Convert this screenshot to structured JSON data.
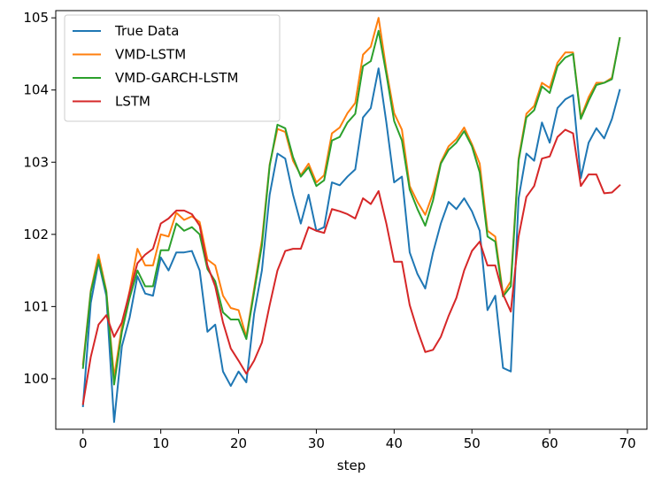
{
  "chart_data": {
    "type": "line",
    "title": "",
    "xlabel": "step",
    "ylabel": "",
    "xlim": [
      -3.5,
      72.5
    ],
    "ylim": [
      99.3,
      105.1
    ],
    "xticks": [
      0,
      10,
      20,
      30,
      40,
      50,
      60,
      70
    ],
    "yticks": [
      100,
      101,
      102,
      103,
      104,
      105
    ],
    "grid": false,
    "legend_position": "top-left",
    "series": [
      {
        "name": "True Data",
        "color": "#1f77b4",
        "values": [
          99.62,
          101.05,
          101.62,
          101.15,
          99.4,
          100.45,
          100.85,
          101.42,
          101.18,
          101.15,
          101.68,
          101.5,
          101.75,
          101.75,
          101.77,
          101.5,
          100.65,
          100.75,
          100.1,
          99.9,
          100.1,
          99.95,
          100.9,
          101.5,
          102.55,
          103.12,
          103.05,
          102.55,
          102.15,
          102.55,
          102.05,
          102.1,
          102.72,
          102.68,
          102.8,
          102.9,
          103.62,
          103.75,
          104.3,
          103.55,
          102.72,
          102.8,
          101.75,
          101.45,
          101.25,
          101.75,
          102.15,
          102.45,
          102.35,
          102.5,
          102.32,
          102.05,
          100.95,
          101.15,
          100.15,
          100.1,
          102.5,
          103.12,
          103.02,
          103.55,
          103.27,
          103.75,
          103.87,
          103.93,
          102.78,
          103.27,
          103.47,
          103.33,
          103.6,
          104.0
        ]
      },
      {
        "name": "VMD-LSTM",
        "color": "#ff7f0e",
        "values": [
          100.2,
          101.22,
          101.72,
          101.22,
          100.02,
          100.72,
          101.22,
          101.8,
          101.57,
          101.57,
          102.0,
          101.97,
          102.3,
          102.2,
          102.25,
          102.17,
          101.65,
          101.57,
          101.15,
          100.98,
          100.95,
          100.58,
          101.25,
          101.92,
          102.97,
          103.46,
          103.42,
          103.02,
          102.82,
          102.98,
          102.72,
          102.82,
          103.4,
          103.48,
          103.68,
          103.82,
          104.49,
          104.6,
          105.0,
          104.28,
          103.68,
          103.45,
          102.67,
          102.45,
          102.27,
          102.57,
          103.0,
          103.22,
          103.32,
          103.48,
          103.25,
          102.98,
          102.05,
          101.97,
          101.17,
          101.35,
          103.05,
          103.67,
          103.78,
          104.1,
          104.03,
          104.38,
          104.52,
          104.52,
          103.62,
          103.9,
          104.1,
          104.1,
          104.17,
          104.72
        ]
      },
      {
        "name": "VMD-GARCH-LSTM",
        "color": "#2ca02c",
        "values": [
          100.15,
          101.2,
          101.65,
          101.2,
          99.92,
          100.65,
          101.12,
          101.5,
          101.28,
          101.28,
          101.78,
          101.78,
          102.15,
          102.05,
          102.1,
          102.0,
          101.52,
          101.35,
          100.92,
          100.82,
          100.82,
          100.55,
          101.2,
          101.85,
          102.95,
          103.52,
          103.47,
          103.07,
          102.8,
          102.93,
          102.67,
          102.75,
          103.3,
          103.35,
          103.55,
          103.67,
          104.33,
          104.4,
          104.82,
          104.22,
          103.57,
          103.3,
          102.62,
          102.35,
          102.12,
          102.47,
          102.98,
          103.17,
          103.27,
          103.43,
          103.22,
          102.86,
          101.97,
          101.9,
          101.14,
          101.28,
          103.02,
          103.62,
          103.72,
          104.05,
          103.96,
          104.33,
          104.45,
          104.5,
          103.6,
          103.85,
          104.07,
          104.1,
          104.15,
          104.72
        ]
      },
      {
        "name": "LSTM",
        "color": "#d62728",
        "values": [
          99.65,
          100.3,
          100.75,
          100.88,
          100.58,
          100.78,
          101.2,
          101.6,
          101.72,
          101.8,
          102.15,
          102.22,
          102.33,
          102.33,
          102.28,
          102.12,
          101.57,
          101.28,
          100.78,
          100.42,
          100.25,
          100.07,
          100.25,
          100.5,
          101.02,
          101.5,
          101.77,
          101.8,
          101.8,
          102.1,
          102.05,
          102.02,
          102.35,
          102.32,
          102.28,
          102.22,
          102.5,
          102.42,
          102.6,
          102.15,
          101.62,
          101.62,
          101.02,
          100.67,
          100.37,
          100.4,
          100.58,
          100.87,
          101.12,
          101.5,
          101.77,
          101.9,
          101.57,
          101.57,
          101.17,
          100.93,
          101.97,
          102.52,
          102.67,
          103.05,
          103.08,
          103.35,
          103.45,
          103.4,
          102.67,
          102.83,
          102.83,
          102.57,
          102.58,
          102.68
        ]
      }
    ]
  }
}
